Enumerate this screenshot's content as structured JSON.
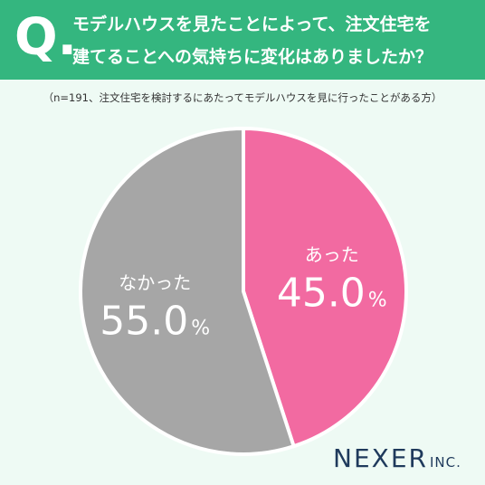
{
  "header": {
    "q_mark": "Q.",
    "question_line1": "モデルハウスを見たことによって、注文住宅を",
    "question_line2": "建てることへの気持ちに変化はありましたか？",
    "background_color": "#34b67f"
  },
  "note": "（n=191、注文住宅を検討するにあたってモデルハウスを見に行ったことがある方）",
  "logo": {
    "name": "NEXER",
    "suffix": "INC."
  },
  "chart_data": {
    "type": "pie",
    "title": "",
    "start_angle_deg": 0,
    "direction": "clockwise",
    "slices": [
      {
        "label": "あった",
        "value": 45.0,
        "display": "45.0",
        "unit": "%",
        "color": "#f26aa1"
      },
      {
        "label": "なかった",
        "value": 55.0,
        "display": "55.0",
        "unit": "%",
        "color": "#a6a6a6"
      }
    ]
  }
}
